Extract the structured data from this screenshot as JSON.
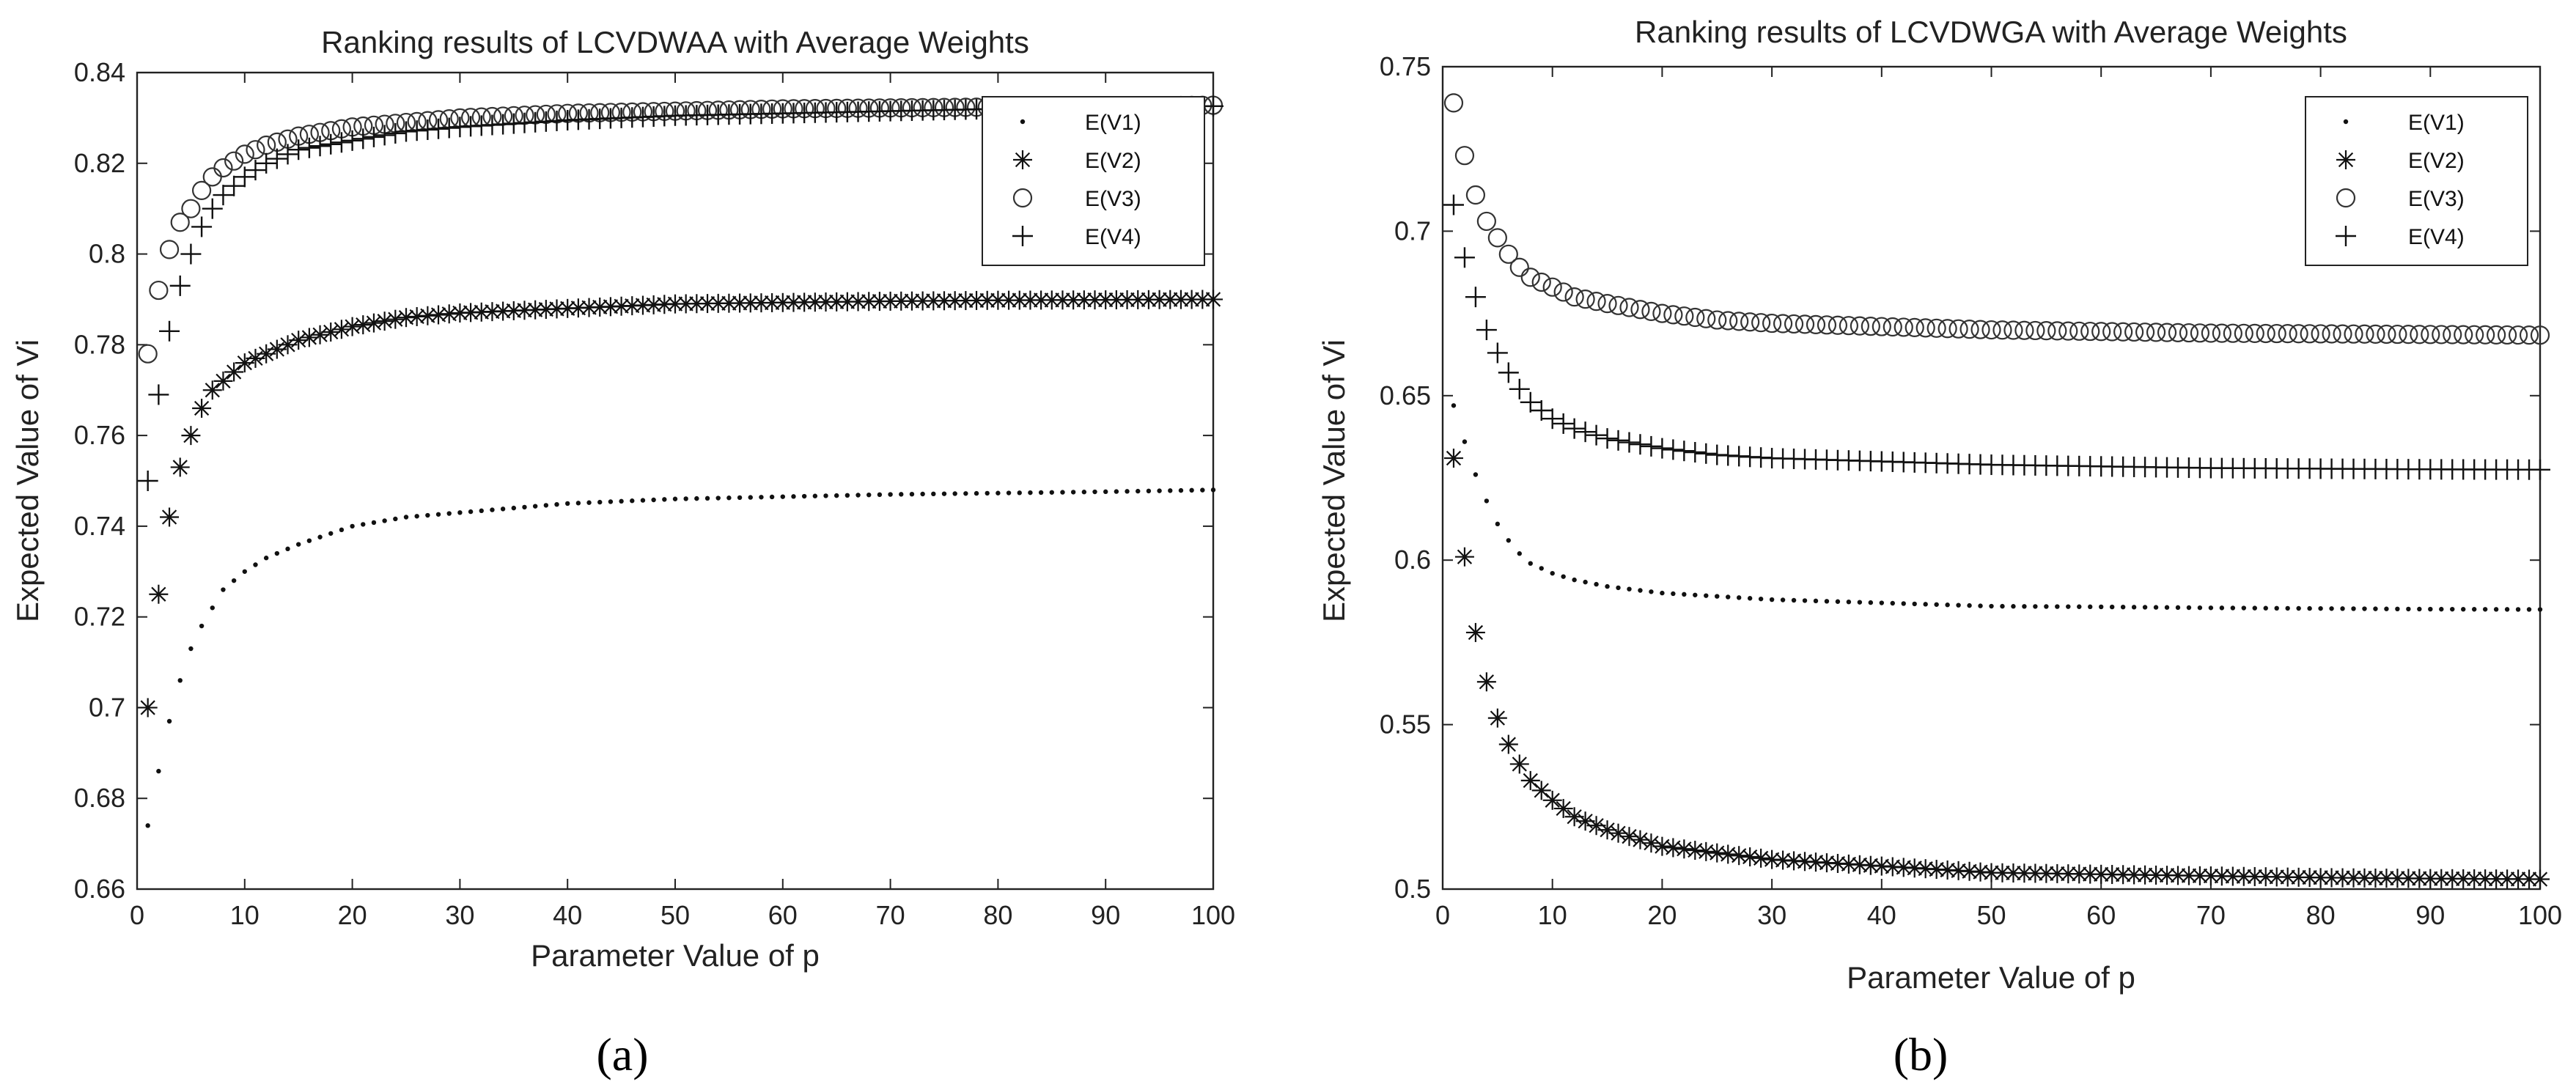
{
  "chart_data": [
    {
      "type": "scatter",
      "title": "Ranking results of LCVDWAA with Average Weights",
      "xlabel": "Parameter Value of p",
      "ylabel": "Expected Value of Vi",
      "panel_label": "(a)",
      "xlim": [
        0,
        100
      ],
      "ylim": [
        0.66,
        0.84
      ],
      "xticks": [
        0,
        10,
        20,
        30,
        40,
        50,
        60,
        70,
        80,
        90,
        100
      ],
      "yticks": [
        0.66,
        0.68,
        0.7,
        0.72,
        0.74,
        0.76,
        0.78,
        0.8,
        0.82,
        0.84
      ],
      "ytick_labels": [
        "0.66",
        "0.68",
        "0.7",
        "0.72",
        "0.74",
        "0.76",
        "0.78",
        "0.8",
        "0.82",
        "0.84"
      ],
      "legend_position": "top-right",
      "x": [
        1,
        2,
        3,
        4,
        5,
        6,
        7,
        8,
        10,
        12,
        15,
        20,
        25,
        30,
        40,
        50,
        60,
        70,
        80,
        90,
        100
      ],
      "series": [
        {
          "name": "E(V1)",
          "marker": "dot",
          "values": [
            0.674,
            0.686,
            0.697,
            0.706,
            0.713,
            0.718,
            0.722,
            0.726,
            0.73,
            0.733,
            0.736,
            0.74,
            0.742,
            0.743,
            0.745,
            0.746,
            0.7465,
            0.747,
            0.7473,
            0.7476,
            0.748
          ]
        },
        {
          "name": "E(V2)",
          "marker": "asterisk",
          "values": [
            0.7,
            0.725,
            0.742,
            0.753,
            0.76,
            0.766,
            0.77,
            0.772,
            0.776,
            0.778,
            0.781,
            0.784,
            0.786,
            0.787,
            0.788,
            0.789,
            0.7893,
            0.7896,
            0.7898,
            0.7899,
            0.79
          ]
        },
        {
          "name": "E(V3)",
          "marker": "circle",
          "values": [
            0.778,
            0.792,
            0.801,
            0.807,
            0.81,
            0.814,
            0.817,
            0.819,
            0.822,
            0.824,
            0.826,
            0.828,
            0.829,
            0.83,
            0.831,
            0.8315,
            0.832,
            0.8322,
            0.8324,
            0.8326,
            0.8328
          ]
        },
        {
          "name": "E(V4)",
          "marker": "plus",
          "values": [
            0.75,
            0.769,
            0.783,
            0.793,
            0.8,
            0.806,
            0.81,
            0.813,
            0.817,
            0.82,
            0.823,
            0.825,
            0.827,
            0.828,
            0.8295,
            0.8305,
            0.831,
            0.8315,
            0.832,
            0.8323,
            0.8326
          ]
        }
      ]
    },
    {
      "type": "scatter",
      "title": "Ranking results of LCVDWGA with Average Weights",
      "xlabel": "Parameter Value of p",
      "ylabel": "Expected Value of Vi",
      "panel_label": "(b)",
      "xlim": [
        0,
        100
      ],
      "ylim": [
        0.5,
        0.75
      ],
      "xticks": [
        0,
        10,
        20,
        30,
        40,
        50,
        60,
        70,
        80,
        90,
        100
      ],
      "yticks": [
        0.5,
        0.55,
        0.6,
        0.65,
        0.7,
        0.75
      ],
      "ytick_labels": [
        "0.5",
        "0.55",
        "0.6",
        "0.65",
        "0.7",
        "0.75"
      ],
      "legend_position": "top-right",
      "x": [
        1,
        2,
        3,
        4,
        5,
        6,
        7,
        8,
        10,
        12,
        15,
        20,
        25,
        30,
        40,
        50,
        60,
        70,
        80,
        90,
        100
      ],
      "series": [
        {
          "name": "E(V1)",
          "marker": "dot",
          "values": [
            0.647,
            0.636,
            0.626,
            0.618,
            0.611,
            0.606,
            0.602,
            0.599,
            0.596,
            0.594,
            0.592,
            0.59,
            0.589,
            0.588,
            0.587,
            0.586,
            0.5858,
            0.5855,
            0.5853,
            0.5851,
            0.585
          ]
        },
        {
          "name": "E(V2)",
          "marker": "asterisk",
          "values": [
            0.631,
            0.601,
            0.578,
            0.563,
            0.552,
            0.544,
            0.538,
            0.533,
            0.527,
            0.522,
            0.518,
            0.513,
            0.511,
            0.509,
            0.507,
            0.505,
            0.5045,
            0.504,
            0.5035,
            0.5032,
            0.503
          ]
        },
        {
          "name": "E(V3)",
          "marker": "circle",
          "values": [
            0.739,
            0.723,
            0.711,
            0.703,
            0.698,
            0.693,
            0.689,
            0.686,
            0.683,
            0.68,
            0.678,
            0.675,
            0.673,
            0.672,
            0.671,
            0.67,
            0.6695,
            0.669,
            0.6688,
            0.6686,
            0.6684
          ]
        },
        {
          "name": "E(V4)",
          "marker": "plus",
          "values": [
            0.708,
            0.692,
            0.68,
            0.67,
            0.663,
            0.657,
            0.652,
            0.648,
            0.643,
            0.64,
            0.637,
            0.634,
            0.632,
            0.631,
            0.63,
            0.629,
            0.6285,
            0.628,
            0.6278,
            0.6276,
            0.6275
          ]
        }
      ]
    }
  ]
}
